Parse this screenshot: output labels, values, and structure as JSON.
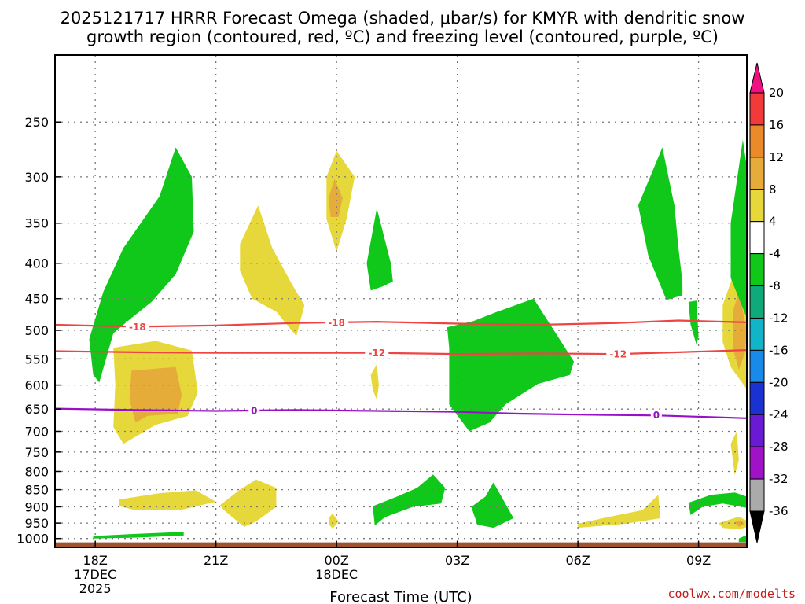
{
  "chart_data": {
    "type": "time-height cross section",
    "title_line1": "2025121717 HRRR Forecast Omega (shaded, μbar/s) for KMYR with dendritic snow",
    "title_line2": "growth region (contoured, red, ºC) and freezing level (contoured, purple, ºC)",
    "xlabel": "Forecast Time (UTC)",
    "credit": "coolwx.com/modelts",
    "y_axis": {
      "scale": "log-pressure",
      "unit": "hPa",
      "ylim": [
        1030,
        200
      ],
      "ticks": [
        250,
        300,
        350,
        400,
        450,
        500,
        550,
        600,
        650,
        700,
        750,
        800,
        850,
        900,
        950,
        1000
      ],
      "grid": true
    },
    "x_axis": {
      "xlim_hours": [
        -1,
        16.2
      ],
      "ticks": [
        {
          "hour": 0,
          "label": "18Z",
          "sub1": "17DEC",
          "sub2": "2025"
        },
        {
          "hour": 3,
          "label": "21Z",
          "sub1": "",
          "sub2": ""
        },
        {
          "hour": 6,
          "label": "00Z",
          "sub1": "18DEC",
          "sub2": ""
        },
        {
          "hour": 9,
          "label": "03Z",
          "sub1": "",
          "sub2": ""
        },
        {
          "hour": 12,
          "label": "06Z",
          "sub1": "",
          "sub2": ""
        },
        {
          "hour": 15,
          "label": "09Z",
          "sub1": "",
          "sub2": ""
        }
      ],
      "grid": true
    },
    "colorbar": {
      "colors": [
        "#f01080",
        "#f23a3a",
        "#ea8a2a",
        "#e6ac3a",
        "#e6d83a",
        "#ffffff",
        "#10c81a",
        "#10aa7a",
        "#12b4c8",
        "#1a8aea",
        "#1a32d2",
        "#6a1ad2",
        "#a012c8",
        "#aaaaaa",
        "#000000"
      ],
      "ticks": [
        "20",
        "16",
        "12",
        "8",
        "4",
        "-4",
        "-8",
        "-12",
        "-16",
        "-20",
        "-24",
        "-28",
        "-32",
        "-36"
      ]
    },
    "contours": [
      {
        "name": "-18",
        "color": "#ee4444",
        "label": "-18",
        "points": [
          [
            -1,
            491
          ],
          [
            1,
            494
          ],
          [
            3,
            492
          ],
          [
            5,
            488
          ],
          [
            7,
            486
          ],
          [
            9,
            489
          ],
          [
            11,
            491
          ],
          [
            13,
            488
          ],
          [
            14.5,
            484
          ],
          [
            16.2,
            487
          ]
        ]
      },
      {
        "name": "-12",
        "color": "#ee4444",
        "label": "-12",
        "points": [
          [
            -1,
            536
          ],
          [
            1,
            538
          ],
          [
            3,
            539
          ],
          [
            5,
            539
          ],
          [
            7,
            539
          ],
          [
            9,
            541
          ],
          [
            11,
            540
          ],
          [
            13,
            541
          ],
          [
            14.5,
            538
          ],
          [
            16.2,
            534
          ]
        ]
      },
      {
        "name": "0",
        "color": "#9a10c8",
        "label": "0",
        "points": [
          [
            -1,
            649
          ],
          [
            1,
            652
          ],
          [
            3,
            654
          ],
          [
            5,
            652
          ],
          [
            7,
            654
          ],
          [
            9,
            656
          ],
          [
            10.5,
            660
          ],
          [
            12,
            662
          ],
          [
            14,
            664
          ],
          [
            16.2,
            670
          ]
        ]
      }
    ],
    "contour_labels": [
      {
        "contour": "-18",
        "hour": 1.05,
        "p": 494
      },
      {
        "contour": "-18",
        "hour": 6.0,
        "p": 487
      },
      {
        "contour": "-12",
        "hour": 7.0,
        "p": 539
      },
      {
        "contour": "-12",
        "hour": 13.0,
        "p": 541
      },
      {
        "contour": "0",
        "hour": 3.95,
        "p": 653
      },
      {
        "contour": "0",
        "hour": 13.95,
        "p": 663
      }
    ],
    "omega_regions": [
      {
        "level": -4,
        "color": "#10c81a",
        "points": [
          [
            -0.05,
            580
          ],
          [
            -0.15,
            515
          ],
          [
            0.2,
            440
          ],
          [
            0.7,
            380
          ],
          [
            1.6,
            320
          ],
          [
            2.0,
            272
          ],
          [
            2.4,
            300
          ],
          [
            2.45,
            360
          ],
          [
            2.0,
            415
          ],
          [
            1.4,
            455
          ],
          [
            0.9,
            480
          ],
          [
            0.45,
            505
          ],
          [
            0.1,
            595
          ]
        ]
      },
      {
        "level": 4,
        "color": "#e6d83a",
        "points": [
          [
            0.45,
            530
          ],
          [
            1.5,
            518
          ],
          [
            2.4,
            535
          ],
          [
            2.55,
            615
          ],
          [
            2.3,
            665
          ],
          [
            1.5,
            685
          ],
          [
            0.7,
            730
          ],
          [
            0.45,
            690
          ],
          [
            0.5,
            600
          ]
        ]
      },
      {
        "level": 8,
        "color": "#e6ac3a",
        "points": [
          [
            0.9,
            572
          ],
          [
            2.0,
            565
          ],
          [
            2.15,
            620
          ],
          [
            2.05,
            660
          ],
          [
            1.3,
            665
          ],
          [
            1.0,
            680
          ],
          [
            0.85,
            630
          ]
        ]
      },
      {
        "level": 4,
        "color": "#e6d83a",
        "points": [
          [
            3.6,
            375
          ],
          [
            4.05,
            330
          ],
          [
            4.4,
            380
          ],
          [
            4.9,
            430
          ],
          [
            5.2,
            460
          ],
          [
            5.0,
            510
          ],
          [
            4.5,
            470
          ],
          [
            3.9,
            450
          ],
          [
            3.6,
            410
          ]
        ]
      },
      {
        "level": 4,
        "color": "#e6d83a",
        "points": [
          [
            5.75,
            300
          ],
          [
            6.0,
            275
          ],
          [
            6.45,
            300
          ],
          [
            6.25,
            345
          ],
          [
            6.0,
            385
          ],
          [
            5.75,
            345
          ]
        ]
      },
      {
        "level": 8,
        "color": "#e6ac3a",
        "points": [
          [
            5.8,
            322
          ],
          [
            5.95,
            302
          ],
          [
            6.15,
            322
          ],
          [
            6.05,
            343
          ],
          [
            5.85,
            343
          ]
        ]
      },
      {
        "level": -4,
        "color": "#10c81a",
        "points": [
          [
            6.75,
            400
          ],
          [
            7.0,
            333
          ],
          [
            7.35,
            400
          ],
          [
            7.4,
            425
          ],
          [
            7.15,
            432
          ],
          [
            6.85,
            438
          ]
        ]
      },
      {
        "level": 4,
        "color": "#e6d83a",
        "points": [
          [
            6.85,
            580
          ],
          [
            7.0,
            560
          ],
          [
            7.05,
            600
          ],
          [
            7.0,
            630
          ],
          [
            6.9,
            610
          ]
        ]
      },
      {
        "level": -4,
        "color": "#10c81a",
        "points": [
          [
            8.75,
            495
          ],
          [
            9.4,
            485
          ],
          [
            10.0,
            470
          ],
          [
            10.9,
            450
          ],
          [
            11.9,
            555
          ],
          [
            11.8,
            580
          ],
          [
            11.0,
            598
          ],
          [
            10.2,
            640
          ],
          [
            9.8,
            680
          ],
          [
            9.3,
            700
          ],
          [
            8.8,
            640
          ],
          [
            8.8,
            580
          ],
          [
            8.8,
            530
          ]
        ]
      },
      {
        "level": -4,
        "color": "#10c81a",
        "points": [
          [
            13.5,
            330
          ],
          [
            14.1,
            272
          ],
          [
            14.4,
            330
          ],
          [
            14.5,
            380
          ],
          [
            14.6,
            425
          ],
          [
            14.6,
            445
          ],
          [
            14.2,
            452
          ],
          [
            13.75,
            390
          ]
        ]
      },
      {
        "level": -4,
        "color": "#10c81a",
        "points": [
          [
            14.75,
            455
          ],
          [
            14.95,
            453
          ],
          [
            15.0,
            510
          ],
          [
            14.95,
            525
          ],
          [
            14.8,
            490
          ]
        ]
      },
      {
        "level": 4,
        "color": "#e6d83a",
        "points": [
          [
            15.6,
            460
          ],
          [
            16.0,
            395
          ],
          [
            16.3,
            460
          ],
          [
            16.6,
            510
          ],
          [
            16.3,
            620
          ],
          [
            15.8,
            565
          ],
          [
            15.6,
            520
          ]
        ]
      },
      {
        "level": 8,
        "color": "#e6ac3a",
        "points": [
          [
            15.85,
            470
          ],
          [
            16.0,
            440
          ],
          [
            16.2,
            500
          ],
          [
            16.15,
            540
          ],
          [
            16.0,
            570
          ],
          [
            15.85,
            530
          ]
        ]
      },
      {
        "level": -4,
        "color": "#10c81a",
        "points": [
          [
            15.8,
            350
          ],
          [
            16.1,
            265
          ],
          [
            16.4,
            350
          ],
          [
            16.5,
            470
          ],
          [
            16.2,
            480
          ],
          [
            15.8,
            420
          ]
        ]
      },
      {
        "level": 4,
        "color": "#e6d83a",
        "points": [
          [
            15.8,
            730
          ],
          [
            15.95,
            700
          ],
          [
            16.0,
            770
          ],
          [
            15.9,
            810
          ]
        ]
      },
      {
        "level": 4,
        "color": "#e6d83a",
        "points": [
          [
            0.6,
            878
          ],
          [
            1.6,
            860
          ],
          [
            2.5,
            852
          ],
          [
            3.0,
            885
          ],
          [
            2.1,
            910
          ],
          [
            1.0,
            910
          ],
          [
            0.6,
            898
          ]
        ]
      },
      {
        "level": 4,
        "color": "#e6d83a",
        "points": [
          [
            3.1,
            895
          ],
          [
            3.6,
            850
          ],
          [
            4.0,
            822
          ],
          [
            4.5,
            845
          ],
          [
            4.5,
            900
          ],
          [
            4.0,
            945
          ],
          [
            3.7,
            962
          ],
          [
            3.2,
            910
          ]
        ]
      },
      {
        "level": 4,
        "color": "#e6d83a",
        "points": [
          [
            5.8,
            935
          ],
          [
            5.9,
            920
          ],
          [
            6.05,
            945
          ],
          [
            5.9,
            968
          ],
          [
            5.82,
            955
          ]
        ]
      },
      {
        "level": -4,
        "color": "#10c81a",
        "points": [
          [
            6.9,
            898
          ],
          [
            7.5,
            870
          ],
          [
            8.0,
            845
          ],
          [
            8.4,
            808
          ],
          [
            8.7,
            845
          ],
          [
            8.6,
            890
          ],
          [
            7.9,
            900
          ],
          [
            7.2,
            932
          ],
          [
            6.95,
            958
          ]
        ]
      },
      {
        "level": -4,
        "color": "#10c81a",
        "points": [
          [
            9.35,
            900
          ],
          [
            9.7,
            870
          ],
          [
            9.9,
            830
          ],
          [
            10.1,
            870
          ],
          [
            10.4,
            935
          ],
          [
            9.9,
            965
          ],
          [
            9.5,
            955
          ]
        ]
      },
      {
        "level": 4,
        "color": "#e6d83a",
        "points": [
          [
            12.0,
            952
          ],
          [
            12.8,
            930
          ],
          [
            13.6,
            910
          ],
          [
            14.0,
            865
          ],
          [
            14.05,
            935
          ],
          [
            13.2,
            952
          ],
          [
            12.0,
            965
          ]
        ]
      },
      {
        "level": -4,
        "color": "#10c81a",
        "points": [
          [
            14.75,
            888
          ],
          [
            15.3,
            865
          ],
          [
            15.9,
            858
          ],
          [
            16.2,
            870
          ],
          [
            16.5,
            888
          ],
          [
            16.6,
            912
          ],
          [
            15.6,
            890
          ],
          [
            15.1,
            900
          ],
          [
            14.8,
            925
          ]
        ]
      },
      {
        "level": 4,
        "color": "#e6d83a",
        "points": [
          [
            15.5,
            950
          ],
          [
            16.0,
            930
          ],
          [
            16.4,
            955
          ],
          [
            16.0,
            970
          ],
          [
            15.6,
            965
          ]
        ]
      },
      {
        "level": 8,
        "color": "#e6ac3a",
        "points": [
          [
            15.9,
            948
          ],
          [
            16.05,
            940
          ],
          [
            16.15,
            952
          ],
          [
            16.0,
            962
          ]
        ]
      },
      {
        "level": -4,
        "color": "#10c81a",
        "points": [
          [
            -0.05,
            992
          ],
          [
            1.0,
            985
          ],
          [
            2.2,
            978
          ],
          [
            2.2,
            990
          ],
          [
            1.0,
            997
          ],
          [
            -0.05,
            1000
          ]
        ]
      },
      {
        "level": -4,
        "color": "#10c81a",
        "points": [
          [
            16.0,
            1000
          ],
          [
            16.25,
            985
          ],
          [
            16.3,
            1012
          ],
          [
            16.0,
            1012
          ]
        ]
      }
    ],
    "terrain": {
      "name": "ground",
      "color": "#a0522d",
      "p_top": 1013
    }
  }
}
